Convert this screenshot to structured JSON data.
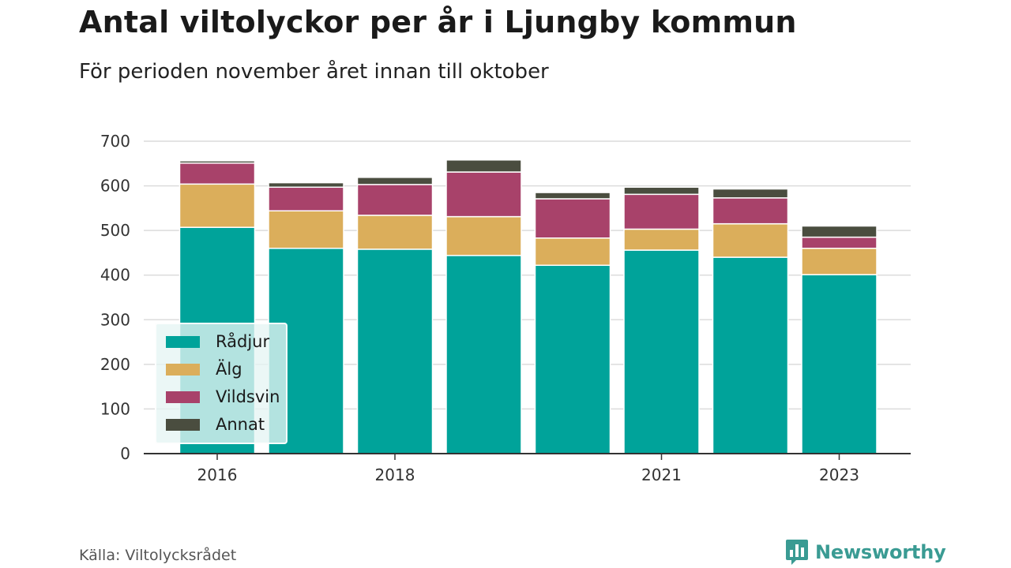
{
  "title": "Antal viltolyckor per år i Ljungby kommun",
  "subtitle": "För perioden november året innan till oktober",
  "source": "Källa: Viltolycksrådet",
  "brand": {
    "name": "Newsworthy",
    "icon": "bar-chart-speech-bubble-icon",
    "color": "#3a9b93"
  },
  "chart_data": {
    "type": "bar",
    "stacked": true,
    "categories": [
      "2016",
      "2017",
      "2018",
      "2019",
      "2020",
      "2021",
      "2022",
      "2023"
    ],
    "x_tick_labels": [
      "2016",
      "",
      "2018",
      "",
      "",
      "2021",
      "",
      "2023"
    ],
    "series": [
      {
        "name": "Rådjur",
        "color": "#00a39a",
        "values": [
          507,
          460,
          458,
          444,
          422,
          456,
          440,
          401
        ]
      },
      {
        "name": "Älg",
        "color": "#dbae5b",
        "values": [
          97,
          84,
          76,
          87,
          61,
          47,
          75,
          59
        ]
      },
      {
        "name": "Vildsvin",
        "color": "#a8426a",
        "values": [
          47,
          53,
          69,
          100,
          88,
          78,
          58,
          25
        ]
      },
      {
        "name": "Annat",
        "color": "#4a4d3f",
        "values": [
          5,
          10,
          16,
          27,
          14,
          16,
          20,
          25
        ]
      }
    ],
    "ylim": [
      0,
      700
    ],
    "yticks": [
      0,
      100,
      200,
      300,
      400,
      500,
      600,
      700
    ],
    "grid": true,
    "legend_position": "bottom-left",
    "xlabel": "",
    "ylabel": ""
  }
}
